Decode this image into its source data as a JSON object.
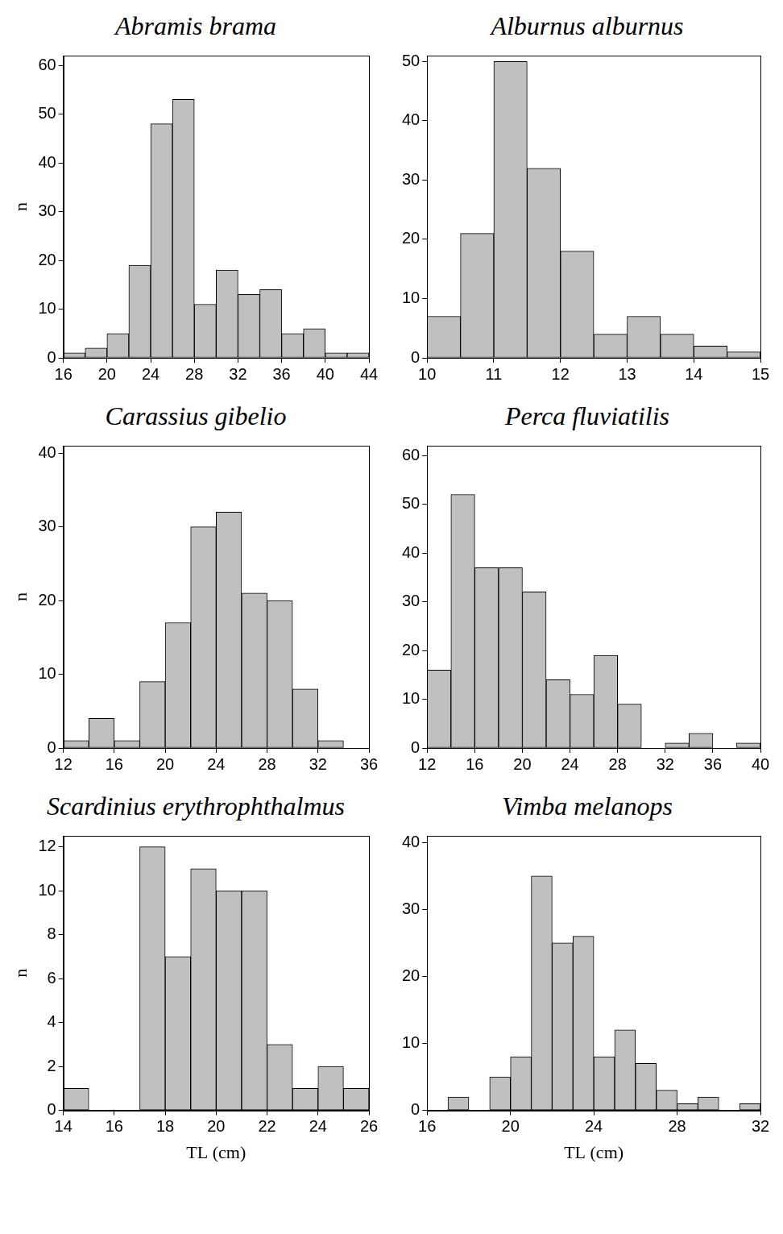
{
  "chart_data": [
    {
      "type": "histogram",
      "title": "Abramis brama",
      "y_label": "n",
      "bins": [
        16,
        18,
        20,
        22,
        24,
        26,
        28,
        30,
        32,
        34,
        36,
        38,
        40,
        42,
        44
      ],
      "values": [
        1,
        2,
        5,
        19,
        48,
        53,
        11,
        18,
        13,
        14,
        5,
        6,
        1,
        1
      ],
      "color": "#c0c0c0",
      "xlim": [
        16,
        44
      ],
      "xticks": [
        16,
        20,
        24,
        28,
        32,
        36,
        40,
        44
      ],
      "ylim": [
        0,
        62
      ],
      "yticks": [
        0,
        10,
        20,
        30,
        40,
        50,
        60
      ],
      "grid": false
    },
    {
      "type": "histogram",
      "title": "Alburnus alburnus",
      "bins": [
        10,
        10.5,
        11,
        11.5,
        12,
        12.5,
        13,
        13.5,
        14,
        14.5,
        15
      ],
      "values": [
        7,
        21,
        50,
        32,
        18,
        4,
        7,
        4,
        2,
        1
      ],
      "color": "#c0c0c0",
      "xlim": [
        10,
        15
      ],
      "xticks": [
        10,
        11,
        12,
        13,
        14,
        15
      ],
      "ylim": [
        0,
        51
      ],
      "yticks": [
        0,
        10,
        20,
        30,
        40,
        50
      ],
      "grid": false
    },
    {
      "type": "histogram",
      "title": "Carassius gibelio",
      "y_label": "n",
      "bins": [
        12,
        14,
        16,
        18,
        20,
        22,
        24,
        26,
        28,
        30,
        32,
        34
      ],
      "values": [
        1,
        4,
        1,
        9,
        17,
        30,
        32,
        21,
        20,
        8,
        1
      ],
      "color": "#c0c0c0",
      "xlim": [
        12,
        36
      ],
      "xticks": [
        12,
        16,
        20,
        24,
        28,
        32,
        36
      ],
      "ylim": [
        0,
        41
      ],
      "yticks": [
        0,
        10,
        20,
        30,
        40
      ],
      "grid": false
    },
    {
      "type": "histogram",
      "title": "Perca fluviatilis",
      "bins": [
        12,
        14,
        16,
        18,
        20,
        22,
        24,
        26,
        28,
        30,
        32,
        34,
        36,
        38,
        40
      ],
      "values": [
        16,
        52,
        37,
        37,
        32,
        14,
        11,
        19,
        9,
        0,
        1,
        3,
        0,
        1
      ],
      "color": "#c0c0c0",
      "xlim": [
        12,
        40
      ],
      "xticks": [
        12,
        16,
        20,
        24,
        28,
        32,
        36,
        40
      ],
      "ylim": [
        0,
        62
      ],
      "yticks": [
        0,
        10,
        20,
        30,
        40,
        50,
        60
      ],
      "grid": false
    },
    {
      "type": "histogram",
      "title": "Scardinius erythrophthalmus",
      "y_label": "n",
      "x_label": "TL (cm)",
      "bins": [
        14,
        15,
        16,
        17,
        18,
        19,
        20,
        21,
        22,
        23,
        24,
        25,
        26
      ],
      "values": [
        1,
        0,
        0,
        12,
        7,
        11,
        10,
        10,
        3,
        1,
        2,
        1
      ],
      "color": "#c0c0c0",
      "xlim": [
        14,
        26
      ],
      "xticks": [
        14,
        16,
        18,
        20,
        22,
        24,
        26
      ],
      "ylim": [
        0,
        12.5
      ],
      "yticks": [
        0,
        2,
        4,
        6,
        8,
        10,
        12
      ],
      "grid": false
    },
    {
      "type": "histogram",
      "title": "Vimba melanops",
      "x_label": "TL (cm)",
      "bins": [
        17,
        18,
        19,
        20,
        21,
        22,
        23,
        24,
        25,
        26,
        27,
        28,
        29,
        30,
        31,
        32
      ],
      "values": [
        2,
        0,
        5,
        8,
        35,
        25,
        26,
        8,
        12,
        7,
        3,
        1,
        2,
        0,
        1
      ],
      "color": "#c0c0c0",
      "xlim": [
        16,
        32
      ],
      "xticks": [
        16,
        20,
        24,
        28,
        32
      ],
      "ylim": [
        0,
        41
      ],
      "yticks": [
        0,
        10,
        20,
        30,
        40
      ],
      "grid": false
    }
  ]
}
